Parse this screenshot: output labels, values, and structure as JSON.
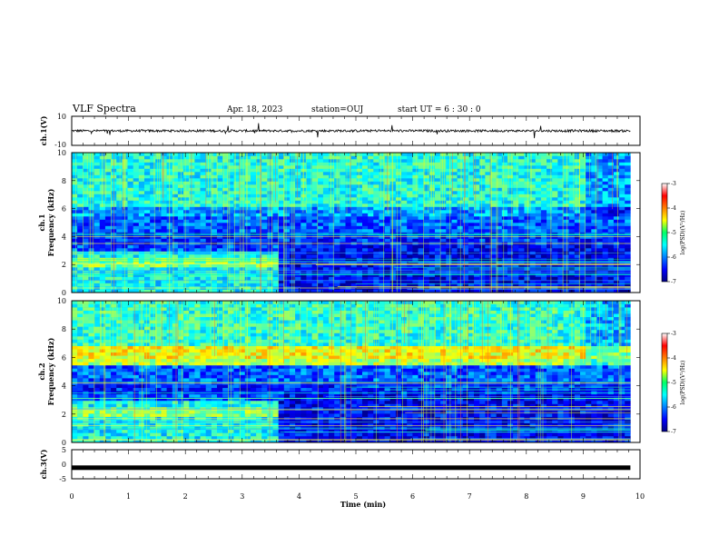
{
  "header": {
    "title": "VLF Spectra",
    "date": "Apr. 18, 2023",
    "station": "station=OUJ",
    "start": "start  UT =   6 : 30 : 0"
  },
  "chart_data": [
    {
      "type": "line",
      "panel": "ch1-waveform",
      "ylabel": "ch.1(V)",
      "ylim": [
        -10,
        10
      ],
      "yticks": [
        "10",
        "-10"
      ],
      "xlim": [
        0,
        10
      ],
      "baseline": 0
    },
    {
      "type": "heatmap",
      "panel": "ch1-spectrogram",
      "ylabel_line1": "ch.1",
      "ylabel_line2": "Frequency (kHz)",
      "ylim": [
        0,
        10
      ],
      "yticks": [
        "0",
        "2",
        "4",
        "6",
        "8",
        "10"
      ],
      "xlim": [
        0,
        10
      ],
      "data_end_min": 9.83,
      "colorbar": {
        "label": "log(PSD)(V²/Hz)",
        "range": [
          -7,
          -3
        ],
        "ticks": [
          "-3",
          "-4",
          "-5",
          "-6",
          "-7"
        ]
      }
    },
    {
      "type": "heatmap",
      "panel": "ch2-spectrogram",
      "ylabel_line1": "ch.2",
      "ylabel_line2": "Frequency (kHz)",
      "ylim": [
        0,
        10
      ],
      "yticks": [
        "0",
        "2",
        "4",
        "6",
        "8",
        "10"
      ],
      "xlim": [
        0,
        10
      ],
      "data_end_min": 9.83,
      "colorbar": {
        "label": "log(PSD)(V²/Hz)",
        "range": [
          -7,
          -3
        ],
        "ticks": [
          "-3",
          "-4",
          "-5",
          "-6",
          "-7"
        ]
      }
    },
    {
      "type": "line",
      "panel": "ch3-waveform",
      "ylabel": "ch.3(V)",
      "ylim": [
        -5,
        5
      ],
      "yticks": [
        "5",
        "0",
        "-5"
      ],
      "xlim": [
        0,
        10
      ],
      "baseline": -1.2
    }
  ],
  "xaxis": {
    "label": "Time  (min)",
    "ticks": [
      "0",
      "1",
      "2",
      "3",
      "4",
      "5",
      "6",
      "7",
      "8",
      "9",
      "10"
    ]
  }
}
